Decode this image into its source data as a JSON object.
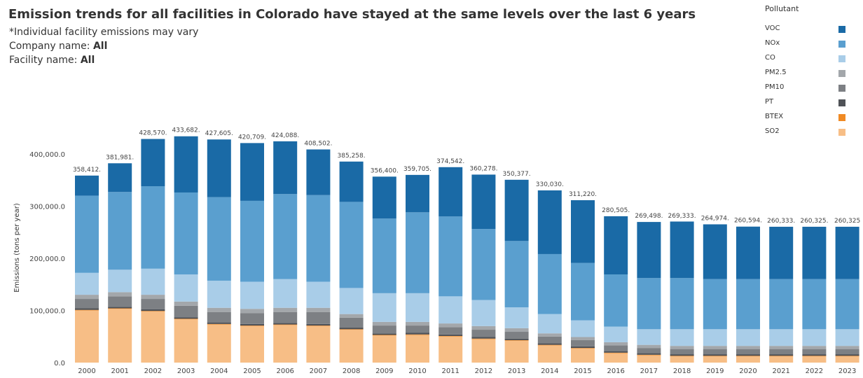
{
  "header": {
    "title": "Emission trends for all facilities in Colorado have stayed at the same levels over the last 6 years",
    "note": "*Individual facility emissions may vary",
    "company_label": "Company name:",
    "company_value": "All",
    "facility_label": "Facility name:",
    "facility_value": "All"
  },
  "legend": {
    "title": "Pollutant",
    "items": [
      {
        "name": "VOC",
        "color": "#1a6aa6"
      },
      {
        "name": "NOx",
        "color": "#5a9fcf"
      },
      {
        "name": "CO",
        "color": "#a9cde8"
      },
      {
        "name": "PM2.5",
        "color": "#a3a7ab"
      },
      {
        "name": "PM10",
        "color": "#7d8084"
      },
      {
        "name": "PT",
        "color": "#4f5257"
      },
      {
        "name": "BTEX",
        "color": "#f08a24"
      },
      {
        "name": "SO2",
        "color": "#f7be86"
      }
    ]
  },
  "chart_data": {
    "type": "bar",
    "stacked": true,
    "title": "Emission trends for all facilities in Colorado have stayed at the same levels over the last 6 years",
    "ylabel": "Emissions (tons per year)",
    "xlabel": "",
    "ylim": [
      0,
      440000
    ],
    "yticks": [
      "0.0",
      "100,000.0",
      "200,000.0",
      "300,000.0",
      "400,000.0"
    ],
    "ytick_values": [
      0,
      100000,
      200000,
      300000,
      400000
    ],
    "legend_position": "top-right",
    "categories": [
      "2000",
      "2001",
      "2002",
      "2003",
      "2004",
      "2005",
      "2006",
      "2007",
      "2008",
      "2009",
      "2010",
      "2011",
      "2012",
      "2013",
      "2014",
      "2015",
      "2016",
      "2017",
      "2018",
      "2019",
      "2020",
      "2021",
      "2022",
      "2023"
    ],
    "totals": [
      358412,
      381981,
      428570,
      433682,
      427605,
      420709,
      424088,
      408502,
      385258,
      356400,
      359705,
      374542,
      360278,
      350377,
      330030,
      311220,
      280505,
      269498,
      269333,
      264974,
      260594,
      260333,
      260325,
      260325
    ],
    "total_labels": [
      "358,412.",
      "381,981.",
      "428,570.",
      "433,682.",
      "427,605.",
      "420,709.",
      "424,088.",
      "408,502.",
      "385,258.",
      "356,400.",
      "359,705.",
      "374,542.",
      "360,278.",
      "350,377.",
      "330,030.",
      "311,220.",
      "280,505.",
      "269,498.",
      "269,333.",
      "264,974.",
      "260,594.",
      "260,333.",
      "260,325.",
      "260,325"
    ],
    "series": [
      {
        "name": "SO2",
        "values": [
          100000,
          103000,
          98000,
          83000,
          73000,
          70000,
          72000,
          70000,
          63000,
          52000,
          53000,
          50000,
          45000,
          42000,
          33000,
          27000,
          18000,
          14000,
          12000,
          12000,
          12000,
          12000,
          12000,
          12000
        ]
      },
      {
        "name": "BTEX",
        "values": [
          1000,
          1000,
          1000,
          1000,
          1000,
          1000,
          1000,
          1000,
          1000,
          1000,
          1000,
          1000,
          1000,
          1000,
          1000,
          1000,
          1000,
          1000,
          1000,
          1000,
          1000,
          1000,
          1000,
          1000
        ]
      },
      {
        "name": "PT",
        "values": [
          3000,
          3000,
          3000,
          3000,
          3000,
          3000,
          3000,
          3000,
          3000,
          3000,
          3000,
          3000,
          3000,
          3000,
          3000,
          3000,
          3000,
          3000,
          3000,
          3000,
          3000,
          3000,
          3000,
          3000
        ]
      },
      {
        "name": "PM10",
        "values": [
          18000,
          20000,
          20000,
          22000,
          20000,
          21000,
          21000,
          23000,
          19000,
          15000,
          14000,
          14000,
          14000,
          13000,
          13000,
          12000,
          11000,
          10000,
          10000,
          10000,
          10000,
          10000,
          10000,
          10000
        ]
      },
      {
        "name": "PM2.5",
        "values": [
          8000,
          8000,
          8000,
          8000,
          8000,
          8000,
          8000,
          8000,
          7000,
          7000,
          7000,
          7000,
          7000,
          7000,
          6000,
          6000,
          6000,
          6000,
          6000,
          6000,
          6000,
          6000,
          6000,
          6000
        ]
      },
      {
        "name": "CO",
        "values": [
          42000,
          43000,
          50000,
          52000,
          52000,
          52000,
          55000,
          50000,
          50000,
          55000,
          55000,
          52000,
          50000,
          40000,
          37000,
          32000,
          30000,
          30000,
          32000,
          32000,
          32000,
          32000,
          32000,
          32000
        ]
      },
      {
        "name": "NOx",
        "values": [
          148000,
          149000,
          158000,
          157000,
          160000,
          155000,
          163000,
          166000,
          165000,
          143000,
          155000,
          153000,
          136000,
          127000,
          115000,
          110000,
          100000,
          98000,
          98000,
          96000,
          96000,
          96000,
          96000,
          96000
        ]
      },
      {
        "name": "VOC",
        "values": [
          38412,
          54981,
          90570,
          107682,
          110605,
          110709,
          101088,
          87502,
          77258,
          80400,
          71705,
          94542,
          104278,
          117377,
          122030,
          120220,
          111505,
          107498,
          108333,
          104974,
          100594,
          100333,
          100325,
          100325
        ]
      }
    ]
  }
}
